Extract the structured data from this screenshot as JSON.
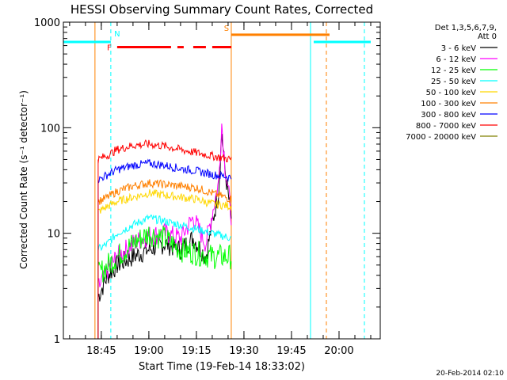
{
  "chart_data": {
    "type": "line",
    "title": "HESSI Observing Summary Count Rates, Corrected",
    "xlabel": "Start Time (19-Feb-14 18:33:02)",
    "ylabel": "Corrected Count Rate (s⁻¹ detector⁻¹)",
    "xlim": [
      "18:33:02",
      "20:13:00"
    ],
    "ylim": [
      1,
      1000
    ],
    "yscale": "log",
    "x_ticks": [
      "18:45",
      "19:00",
      "19:15",
      "19:30",
      "19:45",
      "20:00"
    ],
    "y_ticks": [
      "1",
      "10",
      "100",
      "1000"
    ],
    "legend_title": [
      "Det 1,3,5,6,7,9,",
      "Att 0"
    ],
    "legend_position": "right",
    "series": [
      {
        "name": "3 - 6 keV",
        "color": "#000000",
        "x": [
          "18:44",
          "18:47",
          "18:50",
          "18:55",
          "19:00",
          "19:05",
          "19:10",
          "19:14",
          "19:18",
          "19:22",
          "19:23",
          "19:24",
          "19:26"
        ],
        "values": [
          2.5,
          4,
          5,
          6,
          7,
          8,
          7,
          9,
          6,
          25,
          90,
          40,
          14
        ]
      },
      {
        "name": "6 - 12 keV",
        "color": "#ff00ff",
        "x": [
          "18:44",
          "18:47",
          "18:50",
          "18:55",
          "19:00",
          "19:05",
          "19:10",
          "19:14",
          "19:18",
          "19:22",
          "19:23",
          "19:24",
          "19:26"
        ],
        "values": [
          3,
          4.5,
          6,
          8,
          9.5,
          10,
          9,
          14,
          8,
          30,
          110,
          45,
          15
        ]
      },
      {
        "name": "12 - 25 keV",
        "color": "#00ff00",
        "x": [
          "18:44",
          "18:47",
          "18:50",
          "18:55",
          "19:00",
          "19:05",
          "19:10",
          "19:15",
          "19:20",
          "19:26"
        ],
        "values": [
          4,
          5,
          6,
          8,
          10,
          9,
          7,
          6.5,
          6,
          6
        ]
      },
      {
        "name": "25 - 50 keV",
        "color": "#00ffff",
        "x": [
          "18:44",
          "18:47",
          "18:50",
          "18:55",
          "19:00",
          "19:05",
          "19:10",
          "19:15",
          "19:20",
          "19:26"
        ],
        "values": [
          7,
          8,
          10,
          12,
          14,
          13,
          12,
          11,
          10,
          9
        ]
      },
      {
        "name": "50 - 100 keV",
        "color": "#ffd700",
        "x": [
          "18:44",
          "18:47",
          "18:50",
          "18:55",
          "19:00",
          "19:05",
          "19:10",
          "19:15",
          "19:20",
          "19:26"
        ],
        "values": [
          16,
          18,
          20,
          22,
          24,
          23,
          22,
          21,
          19,
          18
        ]
      },
      {
        "name": "100 - 300 keV",
        "color": "#ff8000",
        "x": [
          "18:44",
          "18:47",
          "18:50",
          "18:55",
          "19:00",
          "19:05",
          "19:10",
          "19:15",
          "19:20",
          "19:26"
        ],
        "values": [
          20,
          22,
          25,
          28,
          30,
          29,
          28,
          27,
          24,
          21
        ]
      },
      {
        "name": "300 - 800 keV",
        "color": "#0000ff",
        "x": [
          "18:44",
          "18:47",
          "18:50",
          "18:55",
          "19:00",
          "19:05",
          "19:10",
          "19:15",
          "19:20",
          "19:26"
        ],
        "values": [
          32,
          36,
          40,
          44,
          46,
          44,
          41,
          39,
          36,
          34
        ]
      },
      {
        "name": "800 - 7000 keV",
        "color": "#ff0000",
        "x": [
          "18:44",
          "18:47",
          "18:50",
          "18:55",
          "19:00",
          "19:05",
          "19:10",
          "19:15",
          "19:20",
          "19:26"
        ],
        "values": [
          50,
          55,
          62,
          68,
          70,
          67,
          62,
          58,
          54,
          50
        ]
      },
      {
        "name": "7000 - 20000 keV",
        "color": "#808000",
        "x": [],
        "values": []
      }
    ],
    "flag_bars": [
      {
        "label": "N",
        "color": "#00ffff",
        "value": 650,
        "segments": [
          [
            "18:33:02",
            "18:48"
          ],
          [
            "19:52",
            "20:10"
          ]
        ]
      },
      {
        "label": "F",
        "color": "#ff0000",
        "value": 580,
        "segments": [
          [
            "18:50",
            "19:07"
          ],
          [
            "19:09",
            "19:11"
          ],
          [
            "19:14",
            "19:18"
          ],
          [
            "19:20",
            "19:26"
          ]
        ]
      },
      {
        "label": "S",
        "color": "#ff8000",
        "value": 760,
        "segments": [
          [
            "19:26",
            "19:57"
          ]
        ]
      }
    ],
    "vertical_markers": [
      {
        "x": "18:43",
        "color": "#ff8000",
        "style": "solid"
      },
      {
        "x": "18:48",
        "color": "#00ffff",
        "style": "dashed"
      },
      {
        "x": "19:26",
        "color": "#ff8000",
        "style": "solid"
      },
      {
        "x": "19:51",
        "color": "#00ffff",
        "style": "solid"
      },
      {
        "x": "19:56",
        "color": "#ff8000",
        "style": "dashed"
      },
      {
        "x": "20:08",
        "color": "#00ffff",
        "style": "dashed"
      }
    ]
  },
  "timestamp": "20-Feb-2014 02:10"
}
